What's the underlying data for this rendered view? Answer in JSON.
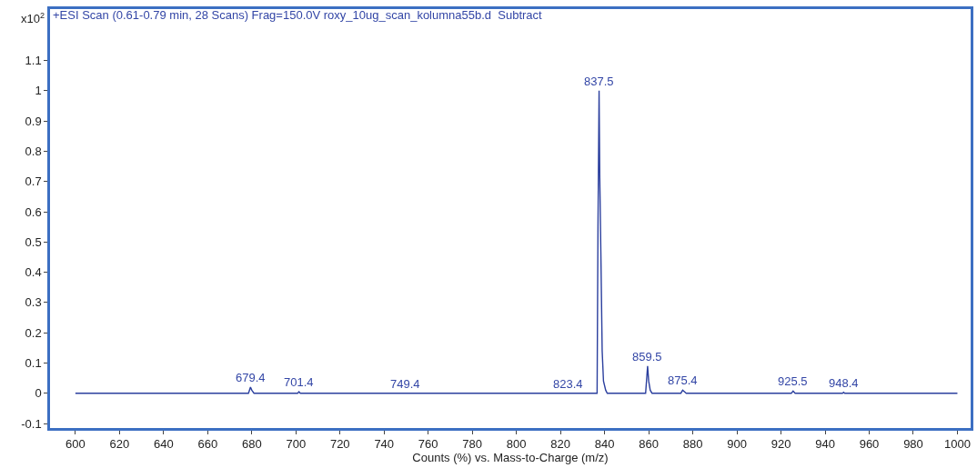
{
  "chart_data": {
    "type": "line",
    "title": "+ESI Scan (0.61-0.79 min, 28 Scans) Frag=150.0V roxy_10ug_scan_kolumna55b.d  Subtract",
    "xlabel": "Counts (%) vs. Mass-to-Charge (m/z)",
    "x": [
      600,
      678.5,
      679.4,
      680.0,
      681.0,
      700.8,
      701.4,
      702.0,
      836.6,
      837.0,
      837.5,
      837.8,
      838.3,
      838.9,
      839.5,
      840.5,
      841.2,
      858.6,
      859.5,
      860.0,
      860.7,
      861.5,
      874.6,
      875.4,
      876.2,
      877.0,
      924.7,
      925.5,
      926.4,
      947.9,
      948.4,
      948.9,
      1000
    ],
    "series": [
      {
        "color": "#2b3f9e",
        "values": [
          0,
          0,
          0.02,
          0.01,
          0,
          0,
          0.005,
          0,
          0,
          0.55,
          1.0,
          0.72,
          0.47,
          0.14,
          0.04,
          0.01,
          0,
          0,
          0.09,
          0.04,
          0.01,
          0,
          0,
          0.01,
          0.005,
          0,
          0,
          0.007,
          0,
          0,
          0.003,
          0,
          0
        ]
      }
    ],
    "xlim": [
      588.5,
      1006
    ],
    "xticks": [
      600,
      620,
      640,
      660,
      680,
      700,
      720,
      740,
      760,
      780,
      800,
      820,
      840,
      860,
      880,
      900,
      920,
      940,
      960,
      980,
      1000
    ],
    "ylim": [
      -0.115,
      1.27
    ],
    "yticks": [
      -0.1,
      0,
      0.1,
      0.2,
      0.3,
      0.4,
      0.5,
      0.6,
      0.7,
      0.8,
      0.9,
      1,
      1.1
    ],
    "annotations": [
      "x10$^{2}$",
      {
        "text": "679.4",
        "x": 679.4,
        "y": 0.02
      },
      {
        "text": "701.4",
        "x": 701.4,
        "y": 0.005
      },
      {
        "text": "749.4",
        "x": 749.4,
        "y": 0
      },
      {
        "text": "823.4",
        "x": 823.4,
        "y": 0
      },
      {
        "text": "837.5",
        "x": 837.5,
        "y": 1.0
      },
      {
        "text": "859.5",
        "x": 859.5,
        "y": 0.09
      },
      {
        "text": "875.4",
        "x": 875.4,
        "y": 0.01
      },
      {
        "text": "925.5",
        "x": 925.5,
        "y": 0.007
      },
      {
        "text": "948.4",
        "x": 948.4,
        "y": 0.003
      }
    ],
    "marker": "none",
    "line_style": "solid"
  }
}
